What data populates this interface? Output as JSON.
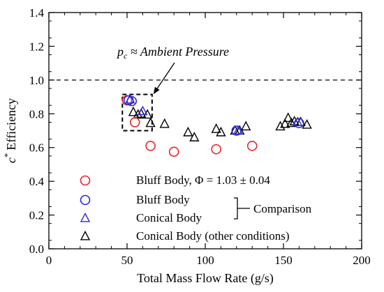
{
  "chart_data": {
    "type": "scatter",
    "title": "",
    "xlabel": "Total Mass Flow Rate (g/s)",
    "ylabel_sym": "c",
    "ylabel_sup": "*",
    "ylabel_word": "Efficiency",
    "xlim": [
      0,
      200
    ],
    "ylim": [
      0,
      1.4
    ],
    "x_ticks": [
      "0",
      "50",
      "100",
      "150",
      "200"
    ],
    "y_ticks": [
      "0.0",
      "0.2",
      "0.4",
      "0.6",
      "0.8",
      "1.0",
      "1.2",
      "1.4"
    ],
    "x_tick_values": [
      0,
      50,
      100,
      150,
      200
    ],
    "y_tick_values": [
      0,
      0.2,
      0.4,
      0.6,
      0.8,
      1.0,
      1.2,
      1.4
    ],
    "grid": false,
    "reference_line": {
      "y": 1.0,
      "style": "dashed",
      "label_sym": "p",
      "label_sub": "c",
      "label_rest": " ≈ Ambient Pressure"
    },
    "highlight_box": {
      "x": [
        47,
        66
      ],
      "y": [
        0.7,
        0.915
      ]
    },
    "series": [
      {
        "name": "Bluff Body, Φ = 1.03 ± 0.04",
        "marker": "circle",
        "color": "#e8242b",
        "points": [
          [
            50,
            0.88
          ],
          [
            55,
            0.75
          ],
          [
            65,
            0.61
          ],
          [
            80,
            0.575
          ],
          [
            107,
            0.59
          ],
          [
            130,
            0.61
          ]
        ]
      },
      {
        "name": "Bluff Body",
        "marker": "circle",
        "color": "#2a2ad8",
        "points": [
          [
            51,
            0.88
          ],
          [
            53,
            0.875
          ],
          [
            120,
            0.7
          ],
          [
            160,
            0.745
          ]
        ]
      },
      {
        "name": "Conical Body",
        "marker": "triangle",
        "color": "#2a2ad8",
        "points": [
          [
            52,
            0.885
          ],
          [
            60,
            0.815
          ],
          [
            121,
            0.7
          ],
          [
            159,
            0.75
          ]
        ]
      },
      {
        "name": "Conical Body (other conditions)",
        "marker": "triangle",
        "color": "#000000",
        "points": [
          [
            54,
            0.81
          ],
          [
            57,
            0.795
          ],
          [
            59,
            0.8
          ],
          [
            63,
            0.795
          ],
          [
            65,
            0.745
          ],
          [
            74,
            0.74
          ],
          [
            89,
            0.69
          ],
          [
            93,
            0.66
          ],
          [
            107,
            0.71
          ],
          [
            110,
            0.69
          ],
          [
            119,
            0.7
          ],
          [
            122,
            0.7
          ],
          [
            126,
            0.725
          ],
          [
            148,
            0.725
          ],
          [
            151,
            0.74
          ],
          [
            153,
            0.775
          ],
          [
            155,
            0.745
          ],
          [
            157,
            0.755
          ],
          [
            161,
            0.75
          ],
          [
            165,
            0.735
          ]
        ]
      }
    ],
    "legend": {
      "placement": "lower-left",
      "entries": [
        {
          "label": "Bluff Body, Φ = 1.03 ± 0.04",
          "marker": "circle",
          "color": "#e8242b"
        },
        {
          "label": "Bluff Body",
          "marker": "circle",
          "color": "#2a2ad8"
        },
        {
          "label": "Conical Body",
          "marker": "triangle",
          "color": "#2a2ad8"
        },
        {
          "label": "Conical Body (other conditions)",
          "marker": "triangle",
          "color": "#000000"
        }
      ],
      "bracket_label": "Comparison"
    }
  }
}
